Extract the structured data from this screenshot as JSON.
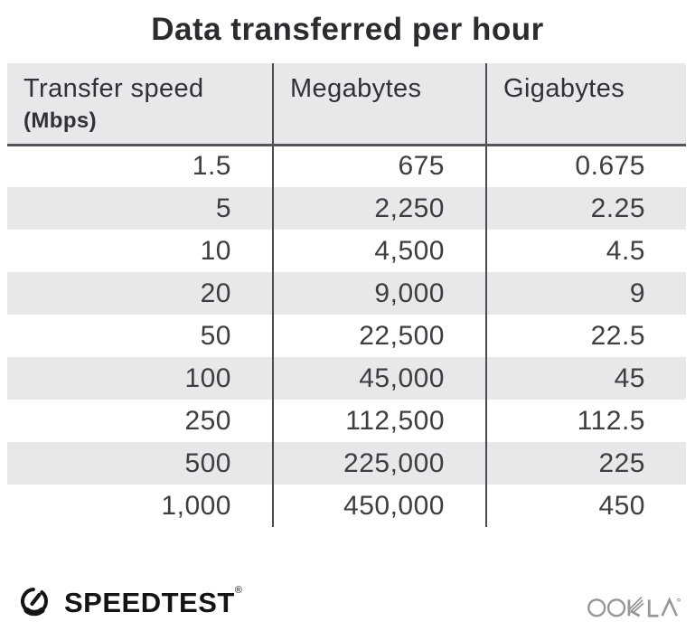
{
  "title": "Data transferred per hour",
  "table": {
    "header": {
      "col1_line1": "Transfer speed",
      "col1_line2": "(Mbps)",
      "col2": "Megabytes",
      "col3": "Gigabytes"
    },
    "rows": [
      [
        "1.5",
        "675",
        "0.675"
      ],
      [
        "5",
        "2,250",
        "2.25"
      ],
      [
        "10",
        "4,500",
        "4.5"
      ],
      [
        "20",
        "9,000",
        "9"
      ],
      [
        "50",
        "22,500",
        "22.5"
      ],
      [
        "100",
        "45,000",
        "45"
      ],
      [
        "250",
        "112,500",
        "112.5"
      ],
      [
        "500",
        "225,000",
        "225"
      ],
      [
        "1,000",
        "450,000",
        "450"
      ]
    ]
  },
  "footer": {
    "speedtest_label": "SPEEDTEST",
    "speedtest_registered_mark": "®",
    "ookla_label": "OOKLA"
  },
  "icons": {
    "speedtest_gauge": "gauge-with-needle",
    "ookla_wordmark": "ookla-stylized-wordmark"
  },
  "colors": {
    "header_bg": "#e8e7ea",
    "row_alt_bg": "#e8e7ea",
    "divider": "#4b4a50",
    "header_border": "#55545a",
    "title_text": "#2c2b30",
    "header_text": "#323137",
    "cell_text": "#3e3d42",
    "speedtest_black": "#141414",
    "ookla_gray": "#97969a"
  },
  "chart_data": {
    "type": "table",
    "title": "Data transferred per hour",
    "columns": [
      "Transfer speed (Mbps)",
      "Megabytes",
      "Gigabytes"
    ],
    "rows": [
      [
        1.5,
        675,
        0.675
      ],
      [
        5,
        2250,
        2.25
      ],
      [
        10,
        4500,
        4.5
      ],
      [
        20,
        9000,
        9
      ],
      [
        50,
        22500,
        22.5
      ],
      [
        100,
        45000,
        45
      ],
      [
        250,
        112500,
        112.5
      ],
      [
        500,
        225000,
        225
      ],
      [
        1000,
        450000,
        450
      ]
    ]
  }
}
